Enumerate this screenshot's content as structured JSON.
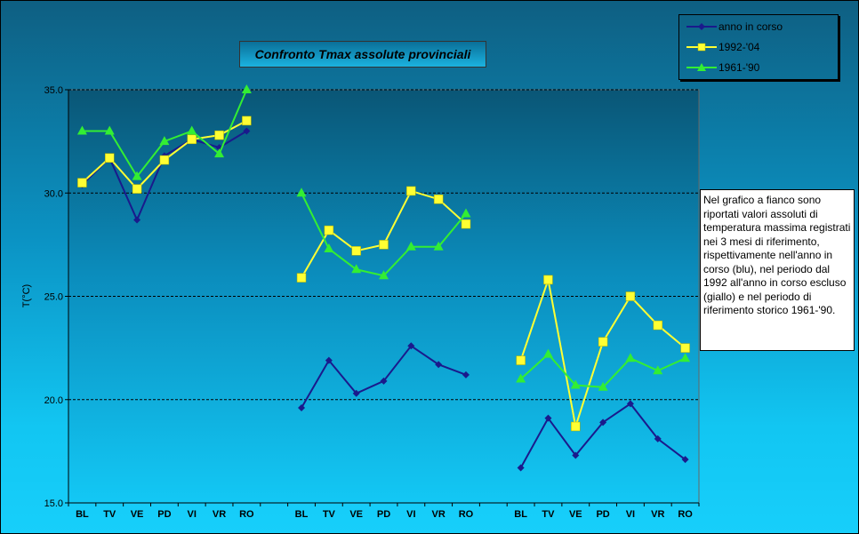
{
  "title": "Confronto Tmax assolute provinciali",
  "legend": {
    "items": [
      {
        "label": "anno in corso",
        "color": "#1a1a8c",
        "marker": "diamond"
      },
      {
        "label": "1992-'04",
        "color": "#ffff33",
        "marker": "square"
      },
      {
        "label": "1961-'90",
        "color": "#33ee33",
        "marker": "triangle"
      }
    ]
  },
  "note": "Nel grafico a fianco sono riportati valori assoluti di temperatura massima registrati nei 3 mesi di riferimento, rispettivamente nell'anno in corso (blu), nel periodo dal 1992 all'anno in corso escluso (giallo) e nel periodo di riferimento storico 1961-'90.",
  "chart_data": {
    "type": "line",
    "ylabel": "T(°C)",
    "ylim": [
      15.0,
      35.0
    ],
    "yticks": [
      "15.0",
      "20.0",
      "25.0",
      "30.0",
      "35.0"
    ],
    "ytick_values": [
      15,
      20,
      25,
      30,
      35
    ],
    "grid": "horizontal dashed",
    "legend_position": "top-right",
    "categories": [
      "BL",
      "TV",
      "VE",
      "PD",
      "VI",
      "VR",
      "RO",
      "",
      "BL",
      "TV",
      "VE",
      "PD",
      "VI",
      "VR",
      "RO",
      "",
      "BL",
      "TV",
      "VE",
      "PD",
      "VI",
      "VR",
      "RO"
    ],
    "series": [
      {
        "name": "anno in corso",
        "color": "#1a1a8c",
        "marker": "diamond",
        "groups": [
          [
            30.4,
            31.7,
            28.7,
            31.8,
            32.6,
            32.2,
            33.0
          ],
          [
            19.6,
            21.9,
            20.3,
            20.9,
            22.6,
            21.7,
            21.2
          ],
          [
            16.7,
            19.1,
            17.3,
            18.9,
            19.8,
            18.1,
            17.1
          ]
        ]
      },
      {
        "name": "1992-'04",
        "color": "#ffff33",
        "marker": "square",
        "groups": [
          [
            30.5,
            31.7,
            30.2,
            31.6,
            32.6,
            32.8,
            33.5
          ],
          [
            25.9,
            28.2,
            27.2,
            27.5,
            30.1,
            29.7,
            28.5
          ],
          [
            21.9,
            25.8,
            18.7,
            22.8,
            25.0,
            23.6,
            22.5
          ]
        ]
      },
      {
        "name": "1961-'90",
        "color": "#33ee33",
        "marker": "triangle",
        "groups": [
          [
            33.0,
            33.0,
            30.8,
            32.5,
            33.0,
            31.9,
            35.0
          ],
          [
            30.0,
            27.3,
            26.3,
            26.0,
            27.4,
            27.4,
            29.0
          ],
          [
            21.0,
            22.2,
            20.7,
            20.6,
            22.0,
            21.4,
            22.0
          ]
        ]
      }
    ]
  }
}
